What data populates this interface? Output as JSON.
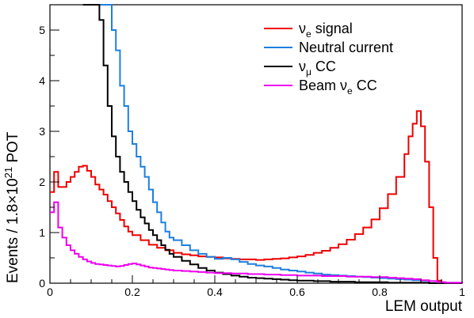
{
  "chart_data": {
    "type": "line",
    "title": "",
    "xlabel": "LEM output",
    "ylabel": "Events / 1.8×10²¹ POT",
    "ylabel_parts": {
      "pre": "Events / 1.8",
      "times": "×",
      "base": "10",
      "exp": "21",
      "post": " POT"
    },
    "xlim": [
      0,
      1
    ],
    "ylim": [
      0,
      5.5
    ],
    "xticks": [
      "0",
      "0.2",
      "0.4",
      "0.6",
      "0.8",
      "1"
    ],
    "xtick_values": [
      0,
      0.2,
      0.4,
      0.6,
      0.8,
      1.0
    ],
    "yticks": [
      "0",
      "1",
      "2",
      "3",
      "4",
      "5"
    ],
    "ytick_values": [
      0,
      1,
      2,
      3,
      4,
      5
    ],
    "grid": false,
    "legend_position": "top-right",
    "series": [
      {
        "name": "νe signal",
        "label": {
          "main": "ν",
          "sub": "e",
          "rest": " signal"
        },
        "color": "#ee0000",
        "points": [
          [
            0.0,
            1.8
          ],
          [
            0.01,
            2.2
          ],
          [
            0.02,
            1.9
          ],
          [
            0.03,
            1.9
          ],
          [
            0.04,
            2.0
          ],
          [
            0.05,
            2.1
          ],
          [
            0.06,
            2.2
          ],
          [
            0.07,
            2.3
          ],
          [
            0.08,
            2.32
          ],
          [
            0.09,
            2.22
          ],
          [
            0.1,
            2.1
          ],
          [
            0.11,
            1.95
          ],
          [
            0.12,
            1.85
          ],
          [
            0.13,
            1.75
          ],
          [
            0.14,
            1.62
          ],
          [
            0.15,
            1.5
          ],
          [
            0.16,
            1.38
          ],
          [
            0.17,
            1.25
          ],
          [
            0.18,
            1.12
          ],
          [
            0.19,
            1.02
          ],
          [
            0.2,
            0.95
          ],
          [
            0.22,
            0.85
          ],
          [
            0.24,
            0.76
          ],
          [
            0.26,
            0.7
          ],
          [
            0.28,
            0.65
          ],
          [
            0.3,
            0.6
          ],
          [
            0.32,
            0.57
          ],
          [
            0.34,
            0.55
          ],
          [
            0.36,
            0.53
          ],
          [
            0.38,
            0.52
          ],
          [
            0.4,
            0.51
          ],
          [
            0.42,
            0.49
          ],
          [
            0.44,
            0.48
          ],
          [
            0.46,
            0.47
          ],
          [
            0.48,
            0.47
          ],
          [
            0.5,
            0.46
          ],
          [
            0.52,
            0.47
          ],
          [
            0.54,
            0.48
          ],
          [
            0.56,
            0.49
          ],
          [
            0.58,
            0.51
          ],
          [
            0.6,
            0.53
          ],
          [
            0.62,
            0.56
          ],
          [
            0.64,
            0.6
          ],
          [
            0.66,
            0.64
          ],
          [
            0.68,
            0.7
          ],
          [
            0.7,
            0.77
          ],
          [
            0.72,
            0.86
          ],
          [
            0.74,
            0.97
          ],
          [
            0.76,
            1.1
          ],
          [
            0.78,
            1.26
          ],
          [
            0.8,
            1.48
          ],
          [
            0.82,
            1.76
          ],
          [
            0.84,
            2.1
          ],
          [
            0.86,
            2.55
          ],
          [
            0.87,
            2.9
          ],
          [
            0.88,
            3.15
          ],
          [
            0.89,
            3.4
          ],
          [
            0.9,
            3.1
          ],
          [
            0.91,
            2.4
          ],
          [
            0.92,
            1.5
          ],
          [
            0.93,
            0.5
          ],
          [
            0.94,
            0.05
          ],
          [
            0.95,
            0.0
          ],
          [
            1.0,
            0.0
          ]
        ]
      },
      {
        "name": "Neutral current",
        "label": {
          "main": "Neutral current",
          "sub": "",
          "rest": ""
        },
        "color": "#1e7fe0",
        "points": [
          [
            0.08,
            5.5
          ],
          [
            0.14,
            5.5
          ],
          [
            0.15,
            5.0
          ],
          [
            0.16,
            4.6
          ],
          [
            0.17,
            3.9
          ],
          [
            0.18,
            3.5
          ],
          [
            0.19,
            3.0
          ],
          [
            0.2,
            2.75
          ],
          [
            0.21,
            2.5
          ],
          [
            0.22,
            2.3
          ],
          [
            0.23,
            2.1
          ],
          [
            0.24,
            1.85
          ],
          [
            0.25,
            1.6
          ],
          [
            0.26,
            1.4
          ],
          [
            0.27,
            1.2
          ],
          [
            0.28,
            1.02
          ],
          [
            0.29,
            0.9
          ],
          [
            0.3,
            0.85
          ],
          [
            0.32,
            0.75
          ],
          [
            0.34,
            0.65
          ],
          [
            0.36,
            0.58
          ],
          [
            0.38,
            0.52
          ],
          [
            0.4,
            0.48
          ],
          [
            0.42,
            0.5
          ],
          [
            0.44,
            0.47
          ],
          [
            0.46,
            0.42
          ],
          [
            0.48,
            0.38
          ],
          [
            0.5,
            0.35
          ],
          [
            0.52,
            0.33
          ],
          [
            0.54,
            0.3
          ],
          [
            0.56,
            0.27
          ],
          [
            0.58,
            0.25
          ],
          [
            0.6,
            0.23
          ],
          [
            0.62,
            0.21
          ],
          [
            0.64,
            0.19
          ],
          [
            0.66,
            0.17
          ],
          [
            0.68,
            0.16
          ],
          [
            0.7,
            0.15
          ],
          [
            0.72,
            0.14
          ],
          [
            0.74,
            0.13
          ],
          [
            0.76,
            0.12
          ],
          [
            0.78,
            0.11
          ],
          [
            0.8,
            0.1
          ],
          [
            0.82,
            0.09
          ],
          [
            0.84,
            0.08
          ],
          [
            0.86,
            0.07
          ],
          [
            0.88,
            0.06
          ],
          [
            0.9,
            0.05
          ],
          [
            0.92,
            0.04
          ],
          [
            0.94,
            0.02
          ],
          [
            0.96,
            0.01
          ],
          [
            1.0,
            0.0
          ]
        ]
      },
      {
        "name": "νμ CC",
        "label": {
          "main": "ν",
          "sub": "μ",
          "rest": " CC"
        },
        "color": "#000000",
        "points": [
          [
            0.08,
            5.5
          ],
          [
            0.11,
            5.5
          ],
          [
            0.12,
            5.2
          ],
          [
            0.13,
            4.3
          ],
          [
            0.14,
            3.5
          ],
          [
            0.15,
            2.9
          ],
          [
            0.16,
            2.5
          ],
          [
            0.17,
            2.2
          ],
          [
            0.18,
            2.0
          ],
          [
            0.19,
            1.8
          ],
          [
            0.2,
            1.62
          ],
          [
            0.21,
            1.45
          ],
          [
            0.22,
            1.3
          ],
          [
            0.23,
            1.18
          ],
          [
            0.24,
            1.05
          ],
          [
            0.25,
            0.95
          ],
          [
            0.26,
            0.85
          ],
          [
            0.27,
            0.75
          ],
          [
            0.28,
            0.66
          ],
          [
            0.29,
            0.58
          ],
          [
            0.3,
            0.52
          ],
          [
            0.32,
            0.44
          ],
          [
            0.34,
            0.37
          ],
          [
            0.36,
            0.3
          ],
          [
            0.38,
            0.25
          ],
          [
            0.4,
            0.21
          ],
          [
            0.42,
            0.18
          ],
          [
            0.44,
            0.15
          ],
          [
            0.46,
            0.13
          ],
          [
            0.48,
            0.11
          ],
          [
            0.5,
            0.1
          ],
          [
            0.52,
            0.09
          ],
          [
            0.54,
            0.08
          ],
          [
            0.56,
            0.07
          ],
          [
            0.58,
            0.06
          ],
          [
            0.6,
            0.05
          ],
          [
            0.62,
            0.05
          ],
          [
            0.64,
            0.04
          ],
          [
            0.66,
            0.04
          ],
          [
            0.68,
            0.03
          ],
          [
            0.7,
            0.03
          ],
          [
            0.72,
            0.03
          ],
          [
            0.74,
            0.02
          ],
          [
            0.76,
            0.02
          ],
          [
            0.78,
            0.02
          ],
          [
            0.8,
            0.02
          ],
          [
            0.82,
            0.01
          ],
          [
            0.84,
            0.01
          ],
          [
            0.86,
            0.01
          ],
          [
            0.88,
            0.01
          ],
          [
            0.9,
            0.01
          ],
          [
            0.92,
            0.0
          ],
          [
            1.0,
            0.0
          ]
        ]
      },
      {
        "name": "Beam νe CC",
        "label": {
          "main": "Beam ν",
          "sub": "e",
          "rest": " CC"
        },
        "color": "#ee00ee",
        "points": [
          [
            0.0,
            1.4
          ],
          [
            0.01,
            1.6
          ],
          [
            0.02,
            1.1
          ],
          [
            0.03,
            0.9
          ],
          [
            0.04,
            0.75
          ],
          [
            0.05,
            0.65
          ],
          [
            0.06,
            0.58
          ],
          [
            0.07,
            0.52
          ],
          [
            0.08,
            0.47
          ],
          [
            0.09,
            0.43
          ],
          [
            0.1,
            0.4
          ],
          [
            0.11,
            0.38
          ],
          [
            0.12,
            0.37
          ],
          [
            0.13,
            0.36
          ],
          [
            0.14,
            0.35
          ],
          [
            0.15,
            0.34
          ],
          [
            0.16,
            0.33
          ],
          [
            0.17,
            0.34
          ],
          [
            0.18,
            0.36
          ],
          [
            0.19,
            0.38
          ],
          [
            0.2,
            0.39
          ],
          [
            0.21,
            0.37
          ],
          [
            0.22,
            0.35
          ],
          [
            0.23,
            0.33
          ],
          [
            0.24,
            0.31
          ],
          [
            0.25,
            0.3
          ],
          [
            0.26,
            0.29
          ],
          [
            0.27,
            0.28
          ],
          [
            0.28,
            0.27
          ],
          [
            0.29,
            0.26
          ],
          [
            0.3,
            0.25
          ],
          [
            0.32,
            0.24
          ],
          [
            0.34,
            0.23
          ],
          [
            0.36,
            0.22
          ],
          [
            0.38,
            0.21
          ],
          [
            0.4,
            0.2
          ],
          [
            0.42,
            0.2
          ],
          [
            0.44,
            0.19
          ],
          [
            0.46,
            0.19
          ],
          [
            0.48,
            0.18
          ],
          [
            0.5,
            0.18
          ],
          [
            0.52,
            0.17
          ],
          [
            0.54,
            0.17
          ],
          [
            0.56,
            0.16
          ],
          [
            0.58,
            0.16
          ],
          [
            0.6,
            0.15
          ],
          [
            0.62,
            0.15
          ],
          [
            0.64,
            0.15
          ],
          [
            0.66,
            0.14
          ],
          [
            0.68,
            0.14
          ],
          [
            0.7,
            0.14
          ],
          [
            0.72,
            0.13
          ],
          [
            0.74,
            0.13
          ],
          [
            0.76,
            0.13
          ],
          [
            0.78,
            0.12
          ],
          [
            0.8,
            0.12
          ],
          [
            0.82,
            0.11
          ],
          [
            0.84,
            0.1
          ],
          [
            0.86,
            0.09
          ],
          [
            0.88,
            0.08
          ],
          [
            0.9,
            0.06
          ],
          [
            0.92,
            0.04
          ],
          [
            0.94,
            0.02
          ],
          [
            0.96,
            0.01
          ],
          [
            1.0,
            0.0
          ]
        ]
      }
    ]
  }
}
